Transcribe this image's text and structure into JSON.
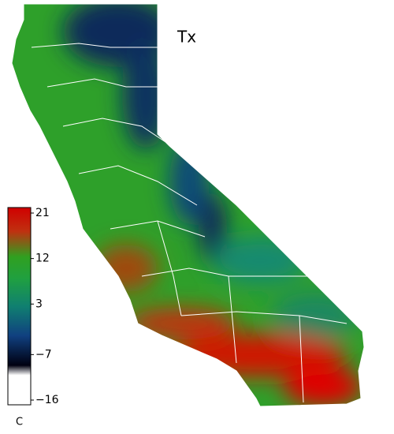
{
  "map": {
    "title": "Tx",
    "colorbar": {
      "lim": [
        -16,
        21
      ],
      "ticks": [
        21,
        12,
        3,
        {
          "value": -7,
          "label": "−7"
        },
        {
          "value": -16,
          "label": "−16"
        }
      ],
      "unit": "C"
    }
  }
}
